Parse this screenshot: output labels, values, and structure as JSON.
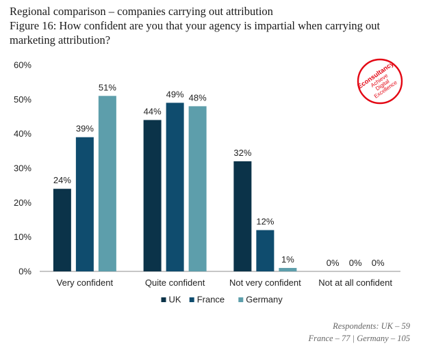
{
  "header": {
    "line1": "Regional comparison – companies carrying out attribution",
    "line2": "Figure 16: How confident are you that your agency is impartial when carrying out marketing attribution?"
  },
  "logo": {
    "brand": "Econsultancy",
    "tagline_1": "Achieve",
    "tagline_2": "Digital",
    "tagline_3": "Excellence",
    "color": "#e30613"
  },
  "chart_data": {
    "type": "bar",
    "title": "How confident are you that your agency is impartial when carrying out marketing attribution?",
    "categories": [
      "Very confident",
      "Quite confident",
      "Not very confident",
      "Not at all confident"
    ],
    "series": [
      {
        "name": "UK",
        "color": "#0b3349",
        "values": [
          24,
          44,
          32,
          0
        ]
      },
      {
        "name": "France",
        "color": "#0f4c6e",
        "values": [
          39,
          49,
          12,
          0
        ]
      },
      {
        "name": "Germany",
        "color": "#5d9eab",
        "values": [
          51,
          48,
          1,
          null
        ]
      }
    ],
    "value_labels": [
      [
        "24%",
        "44%",
        "32%",
        "0%"
      ],
      [
        "39%",
        "49%",
        "12%",
        "0%"
      ],
      [
        "51%",
        "48%",
        "1%",
        "0%"
      ]
    ],
    "ytick_labels": [
      "0%",
      "10%",
      "20%",
      "30%",
      "40%",
      "50%",
      "60%"
    ],
    "ylim": [
      0,
      60
    ],
    "xlabel": "",
    "ylabel": "",
    "legend_position": "bottom"
  },
  "footnote": {
    "line1": "Respondents: UK – 59",
    "line2": "France – 77 | Germany – 105"
  }
}
